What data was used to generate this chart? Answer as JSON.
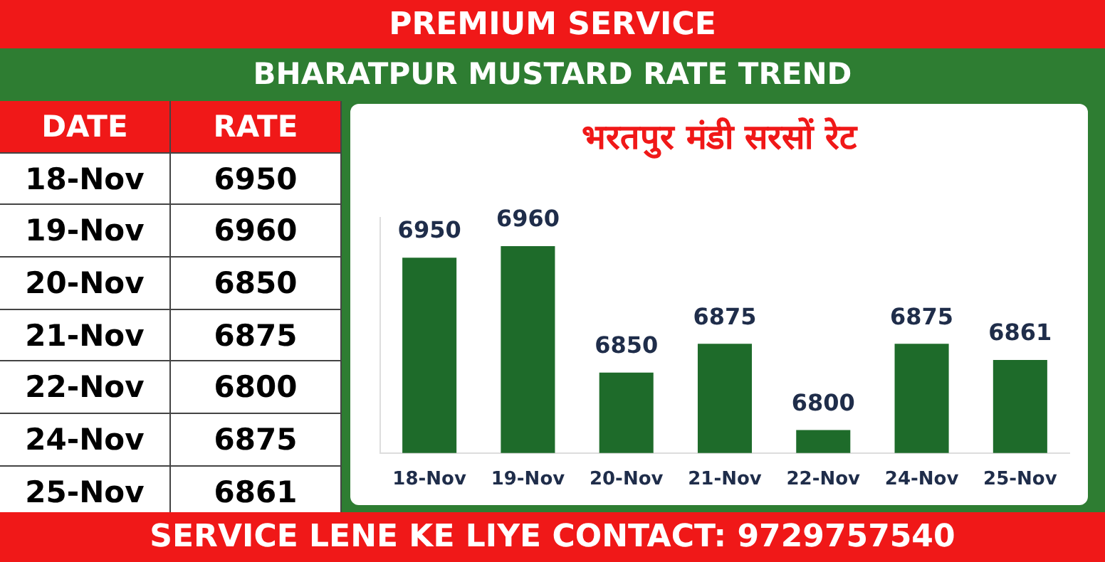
{
  "chart_data": [
    {
      "type": "other",
      "annotations": [
        "DATE",
        "RATE"
      ],
      "data_labels": true,
      "categories": [
        "18-Nov",
        "19-Nov",
        "20-Nov",
        "21-Nov",
        "22-Nov",
        "24-Nov",
        "25-Nov"
      ],
      "values": [
        6950,
        6960,
        6850,
        6875,
        6800,
        6875,
        6861
      ]
    },
    {
      "type": "bar",
      "title": "भरतपुर मंडी सरसों रेट",
      "subtitle": "BHARATPUR MUSTARD RATE TREND",
      "annotations": [
        "PREMIUM SERVICE",
        "SERVICE LENE KE LIYE CONTACT: 9729757540"
      ],
      "categories": [
        "18-Nov",
        "19-Nov",
        "20-Nov",
        "21-Nov",
        "22-Nov",
        "24-Nov",
        "25-Nov"
      ],
      "values": [
        6950,
        6960,
        6850,
        6875,
        6800,
        6875,
        6861
      ],
      "color": "#1e6b2a",
      "ylim": [
        6780,
        6985
      ],
      "data_labels": true,
      "grid": false,
      "legend": false,
      "tick_labels": "x"
    }
  ]
}
